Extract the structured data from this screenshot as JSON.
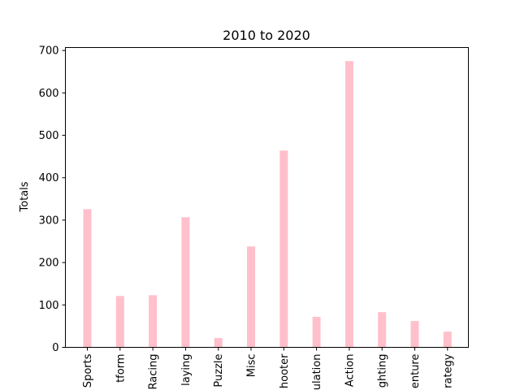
{
  "chart_data": {
    "type": "bar",
    "title": "2010 to 2020",
    "xlabel": "",
    "ylabel": "Totals",
    "ylim": [
      0,
      700
    ],
    "yticks": [
      "0",
      "100",
      "200",
      "300",
      "400",
      "500",
      "600",
      "700"
    ],
    "categories": [
      "Sports",
      "Platform",
      "Racing",
      "Role-Playing",
      "Puzzle",
      "Misc",
      "Shooter",
      "Simulation",
      "Action",
      "Fighting",
      "Adventure",
      "Strategy"
    ],
    "visible_tick_labels": [
      "Sports",
      "tform",
      "Racing",
      "laying",
      "Puzzle",
      "Misc",
      "hooter",
      "ulation",
      "Action",
      "ghting",
      "enture",
      "rategy"
    ],
    "values": [
      326,
      121,
      123,
      307,
      22,
      238,
      464,
      72,
      675,
      83,
      62,
      37
    ],
    "bar_color": "#ffc0cb",
    "grid": false,
    "legend": "none"
  }
}
